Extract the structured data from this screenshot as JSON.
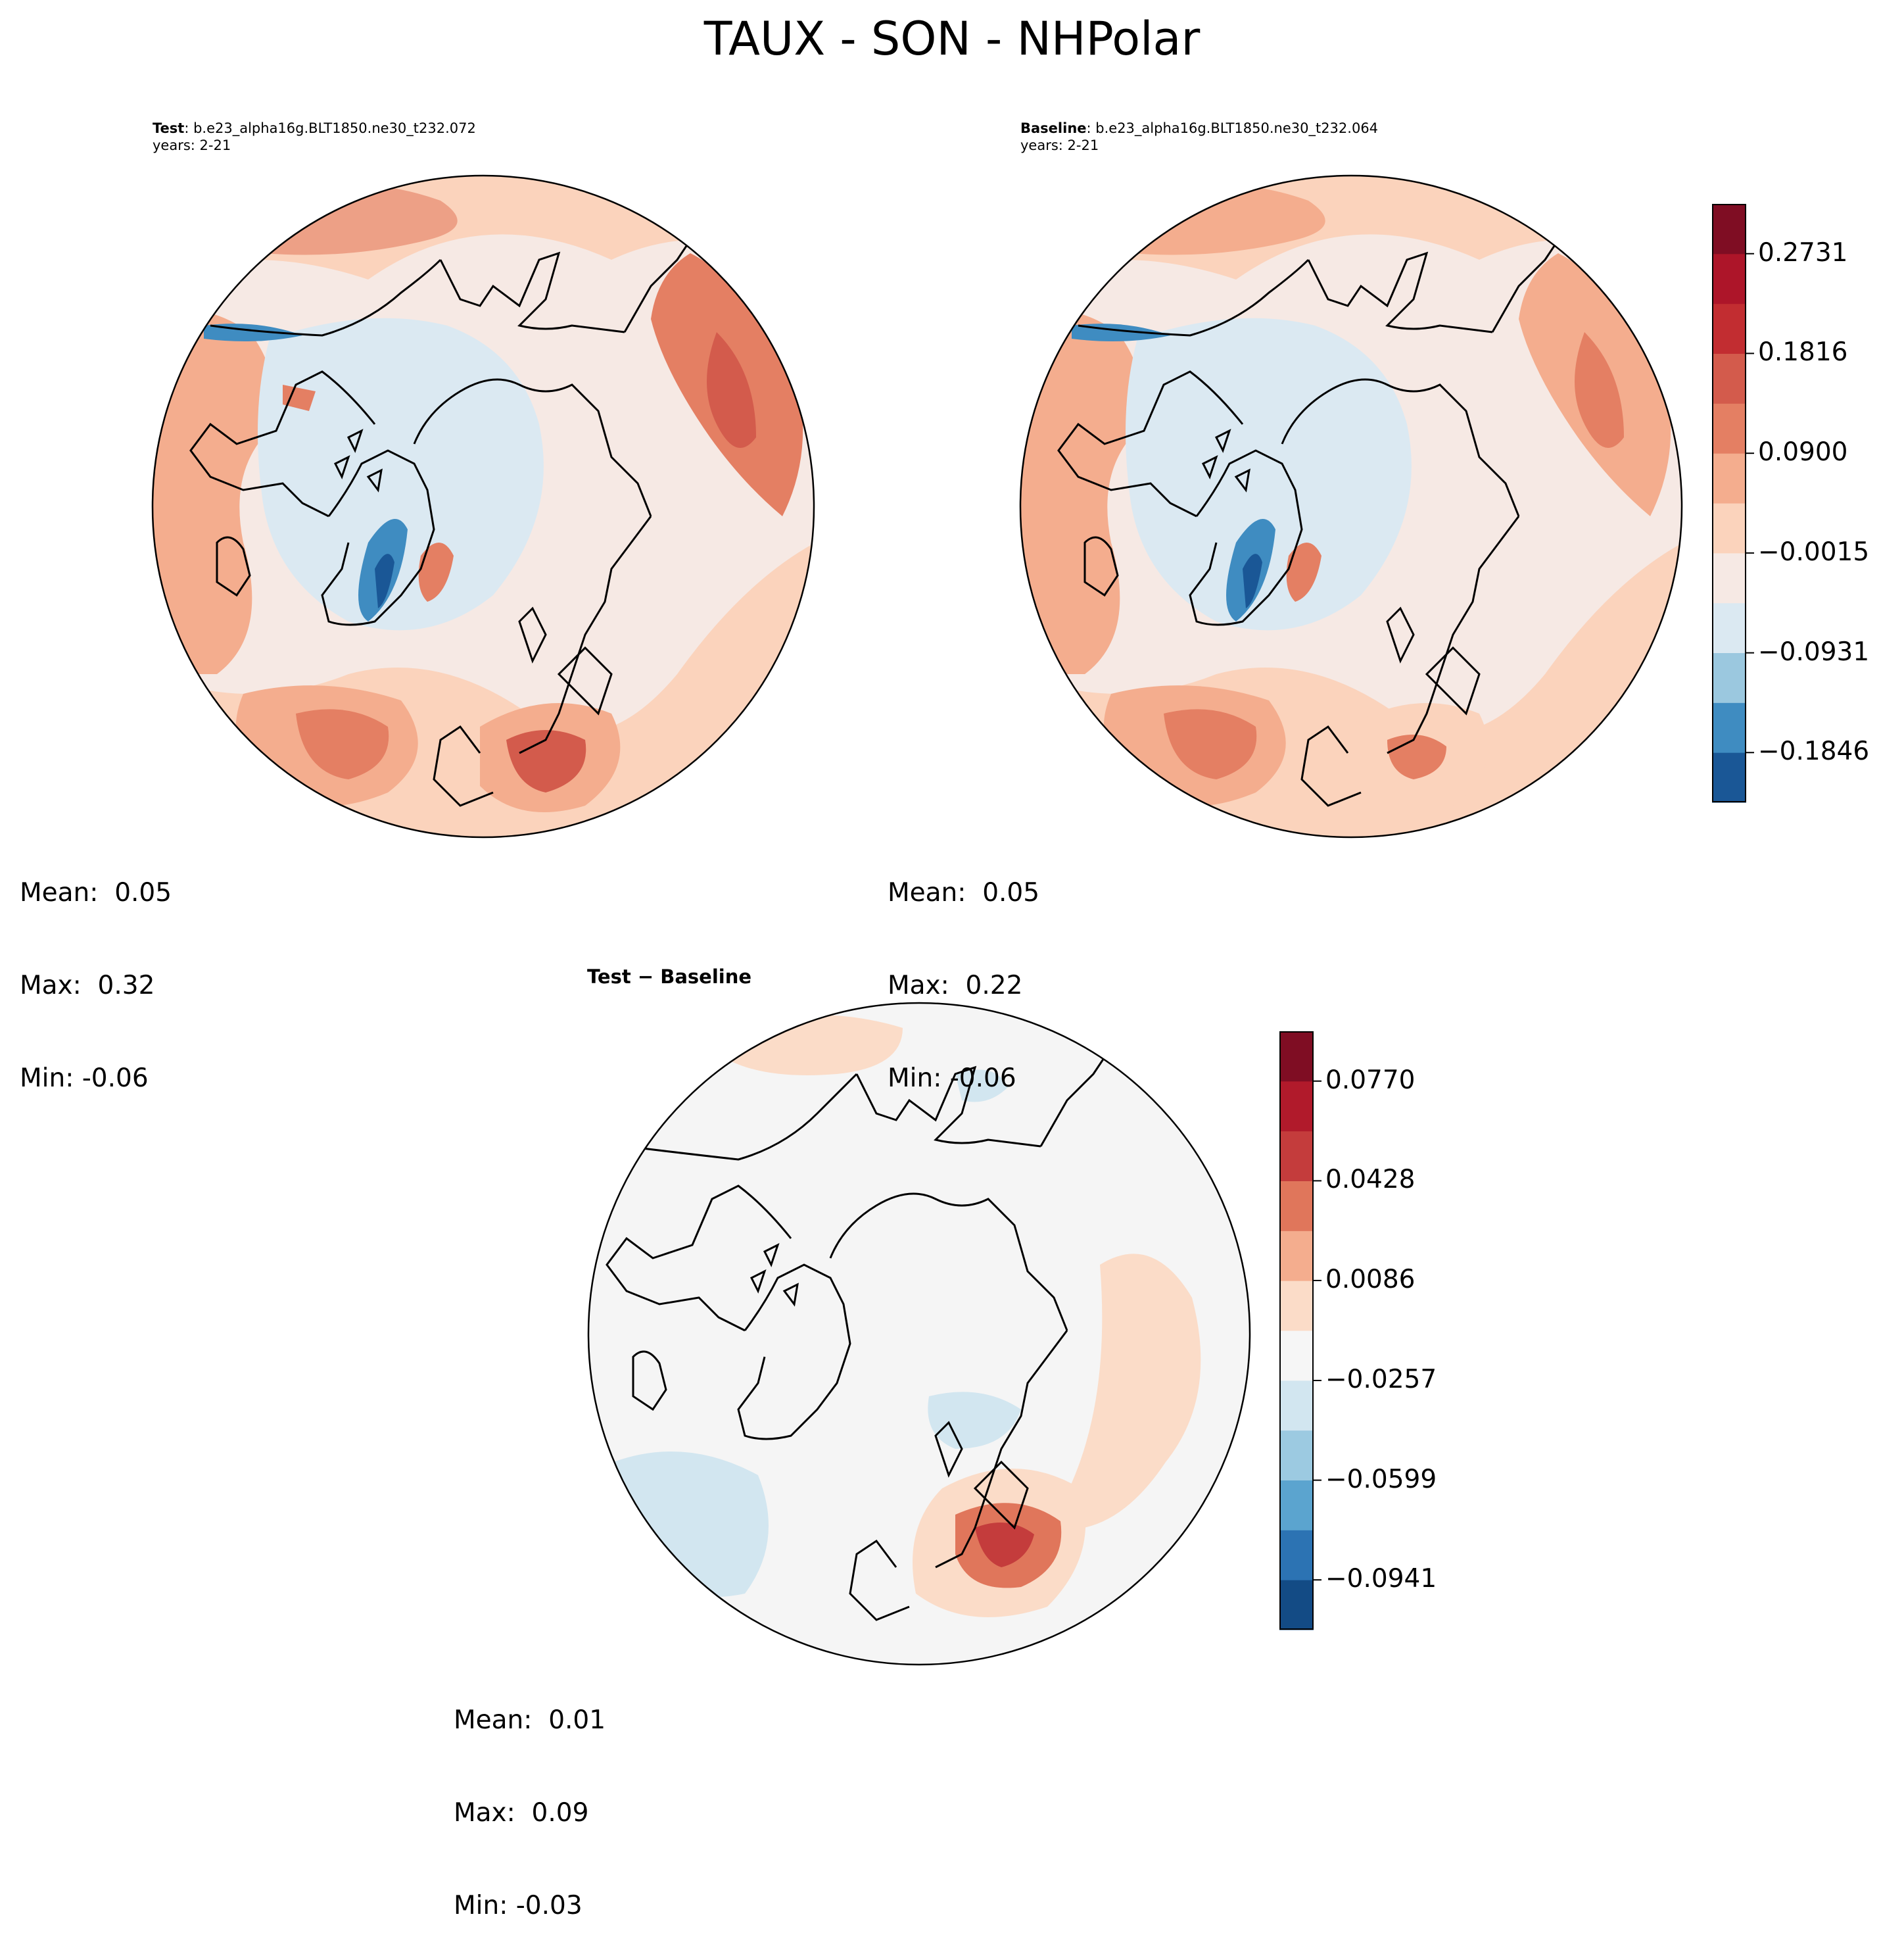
{
  "figure_title": "TAUX - SON - NHPolar",
  "panels": {
    "test": {
      "label": "Test",
      "case": ": b.e23_alpha16g.BLT1850.ne30_t232.072",
      "years": "years: 2-21",
      "stats": [
        "Mean:  0.05",
        "Max:  0.32",
        "Min: -0.06"
      ]
    },
    "baseline": {
      "label": "Baseline",
      "case": ": b.e23_alpha16g.BLT1850.ne30_t232.064",
      "years": "years: 2-21",
      "stats": [
        "Mean:  0.05",
        "Max:  0.22",
        "Min: -0.06"
      ]
    },
    "diff": {
      "label": "Test − Baseline",
      "stats": [
        "Mean:  0.01",
        "Max:  0.09",
        "Min: -0.03"
      ]
    }
  },
  "chart_data": [
    {
      "type": "heatmap",
      "name": "Test",
      "projection": "north polar stereographic",
      "variable": "TAUX",
      "season": "SON",
      "mean": 0.05,
      "max": 0.32,
      "min": -0.06
    },
    {
      "type": "heatmap",
      "name": "Baseline",
      "projection": "north polar stereographic",
      "variable": "TAUX",
      "season": "SON",
      "mean": 0.05,
      "max": 0.22,
      "min": -0.06
    },
    {
      "type": "heatmap",
      "name": "Test - Baseline",
      "projection": "north polar stereographic",
      "variable": "TAUX",
      "season": "SON",
      "mean": 0.01,
      "max": 0.09,
      "min": -0.03
    }
  ],
  "colorbars": {
    "main": {
      "range": [
        -0.2303,
        0.3188
      ],
      "levels": 12,
      "ticks": [
        -0.1846,
        -0.0931,
        -0.0015,
        0.09,
        0.1816,
        0.2731
      ],
      "tick_labels": [
        "−0.1846",
        "−0.0931",
        "−0.0015",
        "0.0900",
        "0.1816",
        "0.2731"
      ],
      "colors": [
        "#1a5796",
        "#3f8cc1",
        "#9bc8df",
        "#dbe9f2",
        "#f6e9e4",
        "#fbd3bc",
        "#f4ad8e",
        "#e47f63",
        "#d35b4c",
        "#c22d31",
        "#ad1529",
        "#7f0d23"
      ]
    },
    "diff": {
      "range": [
        -0.1112,
        0.0941
      ],
      "levels": 12,
      "ticks": [
        -0.0941,
        -0.0599,
        -0.0257,
        0.0086,
        0.0428,
        0.077
      ],
      "tick_labels": [
        "−0.0941",
        "−0.0599",
        "−0.0257",
        "0.0086",
        "0.0428",
        "0.0770"
      ],
      "colors": [
        "#134b85",
        "#2c73b3",
        "#5ba4cf",
        "#9ccae1",
        "#d2e6f0",
        "#f6f6f6",
        "#fbdcc8",
        "#f4ad8e",
        "#e0765b",
        "#c43c3c",
        "#b11a2b",
        "#7f0d23"
      ]
    }
  },
  "palette": {
    "blue_dark": "#2f6fae",
    "blue_mid": "#9bc8df",
    "blue_light": "#dbe9f2",
    "neutral": "#f6e9e4",
    "red_light": "#fbd3bc",
    "red_mid": "#f4ad8e",
    "red_strong": "#e47f63",
    "red_dark": "#c22d31",
    "diff_bg": "#f5f5f5",
    "diff_blue": "#d2e6f0",
    "diff_red": "#fbdcc8"
  }
}
